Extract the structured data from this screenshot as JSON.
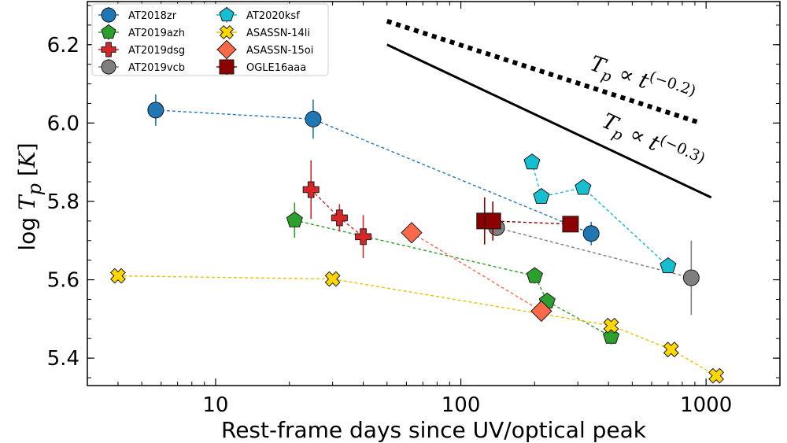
{
  "chart_data": {
    "type": "scatter",
    "xscale": "log",
    "xlabel": "Rest-frame days since UV/optical peak",
    "ylabel": "log T_p [K]",
    "xlim": [
      3,
      2000
    ],
    "ylim": [
      5.33,
      6.31
    ],
    "xticks": [
      {
        "value": 10,
        "label": "10"
      },
      {
        "value": 100,
        "label": "100"
      },
      {
        "value": 1000,
        "label": "1000"
      }
    ],
    "yticks": [
      {
        "value": 5.4,
        "label": "5.4"
      },
      {
        "value": 5.6,
        "label": "5.6"
      },
      {
        "value": 5.8,
        "label": "5.8"
      },
      {
        "value": 6.0,
        "label": "6.0"
      },
      {
        "value": 6.2,
        "label": "6.2"
      }
    ],
    "legend_position": "top-left",
    "series": [
      {
        "name": "AT2018zr",
        "marker": "circle",
        "color": "#1f77b4",
        "line_color": "#1f77b4",
        "x": [
          5.7,
          25,
          340
        ],
        "y": [
          6.033,
          6.01,
          5.718
        ],
        "yerr": [
          0.04,
          0.05,
          0.03
        ]
      },
      {
        "name": "AT2019azh",
        "marker": "pentagon",
        "color": "#2ca02c",
        "line_color": "#2ca02c",
        "x": [
          21,
          200,
          225,
          410
        ],
        "y": [
          5.752,
          5.61,
          5.545,
          5.455
        ],
        "yerr": [
          0.045,
          0.02,
          0.02,
          0.02
        ]
      },
      {
        "name": "AT2019dsg",
        "marker": "plus",
        "color": "#d62728",
        "line_color": "#d62728",
        "x": [
          24.5,
          32,
          40
        ],
        "y": [
          5.83,
          5.758,
          5.71
        ],
        "yerr": [
          0.075,
          0.035,
          0.055
        ]
      },
      {
        "name": "AT2019vcb",
        "marker": "circle",
        "color": "#7f7f7f",
        "line_color": "#7f7f7f",
        "x": [
          140,
          870
        ],
        "y": [
          5.733,
          5.605
        ],
        "yerr": [
          0.015,
          0.095
        ]
      },
      {
        "name": "AT2020ksf",
        "marker": "pentagon",
        "color": "#17becf",
        "line_color": "#17becf",
        "x": [
          195,
          213,
          315,
          700
        ],
        "y": [
          5.9,
          5.812,
          5.835,
          5.635
        ],
        "yerr": [
          0.01,
          0.01,
          0.01,
          0.01
        ]
      },
      {
        "name": "ASASSN-14li",
        "marker": "x",
        "color": "#ffd700",
        "line_color": "#e6c200",
        "x": [
          4,
          30,
          410,
          720,
          1100
        ],
        "y": [
          5.61,
          5.602,
          5.483,
          5.422,
          5.355
        ],
        "yerr": [
          0.0,
          0.0,
          0.0,
          0.0,
          0.0
        ]
      },
      {
        "name": "ASASSN-15oi",
        "marker": "diamond",
        "color": "#fa6a4a",
        "line_color": "#fa6a4a",
        "x": [
          63,
          213
        ],
        "y": [
          5.72,
          5.52
        ],
        "yerr": [
          0.0,
          0.0
        ]
      },
      {
        "name": "OGLE16aaa",
        "marker": "square",
        "color": "#8b0000",
        "line_color": "#8b0000",
        "x": [
          125,
          135,
          280
        ],
        "y": [
          5.75,
          5.75,
          5.742
        ],
        "yerr": [
          0.06,
          0.05,
          0.02
        ]
      }
    ],
    "reference_lines": [
      {
        "label": "T_p ∝ t^(−0.2)",
        "slope": -0.2,
        "style": "dotted",
        "x": [
          50,
          950
        ],
        "y": [
          6.26,
          6.0
        ]
      },
      {
        "label": "T_p ∝ t^(−0.3)",
        "slope": -0.3,
        "style": "solid",
        "x": [
          50,
          1050
        ],
        "y": [
          6.2,
          5.81
        ]
      }
    ],
    "annotations": [
      {
        "base": "T",
        "sub": "p",
        "rel": " ∝ t",
        "exp": "(−0.2)"
      },
      {
        "base": "T",
        "sub": "p",
        "rel": " ∝ t",
        "exp": "(−0.3)"
      }
    ]
  }
}
